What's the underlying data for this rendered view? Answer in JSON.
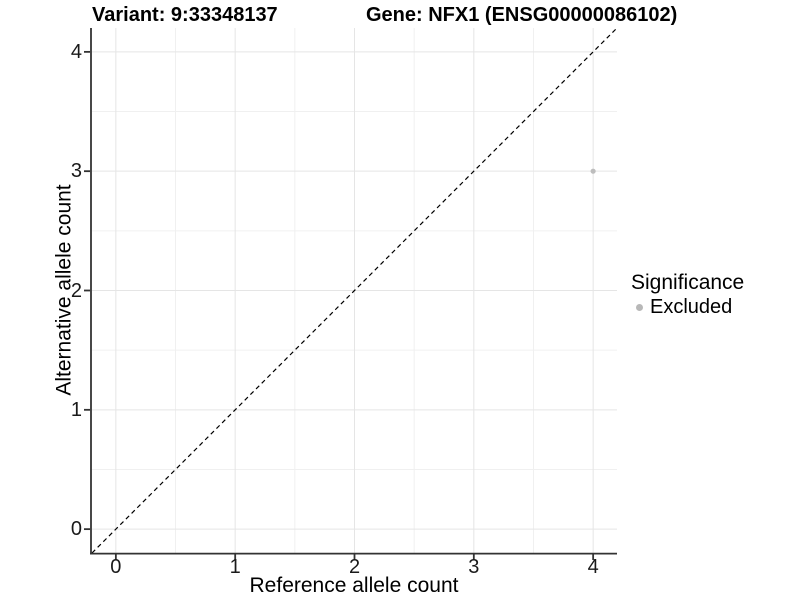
{
  "chart_data": {
    "type": "scatter",
    "titles": {
      "left": "Variant: 9:33348137",
      "right": "Gene: NFX1 (ENSG00000086102)"
    },
    "xlabel": "Reference allele count",
    "ylabel": "Alternative allele count",
    "xlim": [
      -0.2,
      4.2
    ],
    "ylim": [
      -0.2,
      4.2
    ],
    "xticks": [
      0,
      1,
      2,
      3,
      4
    ],
    "yticks": [
      0,
      1,
      2,
      3,
      4
    ],
    "minor_ticks": [
      0.5,
      1.5,
      2.5,
      3.5
    ],
    "grid": true,
    "points": [
      {
        "x": 4,
        "y": 3,
        "significance": "Excluded"
      }
    ],
    "reference_line": {
      "slope": 1,
      "intercept": 0,
      "style": "dashed",
      "color": "#000000"
    },
    "legend": {
      "title": "Significance",
      "position": "right",
      "entries": [
        {
          "label": "Excluded",
          "color": "#b8b8b8"
        }
      ]
    },
    "colors": {
      "point": "#bdbdbd",
      "grid_major": "#e5e5e5",
      "grid_minor": "#f0f0f0",
      "axis_line": "#333333",
      "background": "#ffffff"
    }
  }
}
